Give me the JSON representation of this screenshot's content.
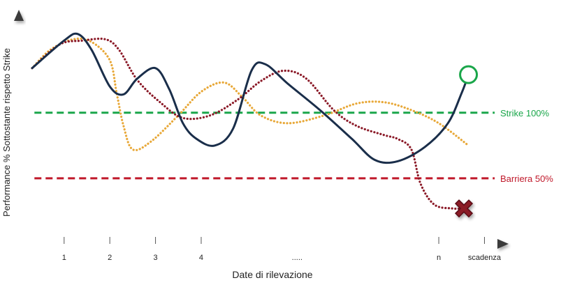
{
  "chart_data": {
    "type": "line",
    "title": "",
    "xlabel": "Date di rilevazione",
    "ylabel": "Performance % Sottostante rispetto Strike",
    "x_ticks": [
      "1",
      "2",
      "3",
      "4",
      ".....",
      "n",
      "scadenza"
    ],
    "ylim": [
      0,
      170
    ],
    "reference_lines": [
      {
        "label": "Strike 100%",
        "value": 100,
        "color": "#1aa64a",
        "style": "dashed"
      },
      {
        "label": "Barriera 50%",
        "value": 50,
        "color": "#c0182a",
        "style": "dashed"
      }
    ],
    "series": [
      {
        "color": "#1a2e4a",
        "style": "solid",
        "end_marker": "circle",
        "end_marker_color": "#1aa64a",
        "points": [
          [
            0.0,
            134
          ],
          [
            0.7,
            155
          ],
          [
            1.0,
            160
          ],
          [
            1.3,
            148
          ],
          [
            1.7,
            120
          ],
          [
            2.0,
            114
          ],
          [
            2.3,
            126
          ],
          [
            2.7,
            134
          ],
          [
            3.0,
            118
          ],
          [
            3.3,
            92
          ],
          [
            3.6,
            80
          ],
          [
            4.0,
            75
          ],
          [
            4.4,
            88
          ],
          [
            4.8,
            132
          ],
          [
            5.1,
            137
          ],
          [
            5.6,
            122
          ],
          [
            6.3,
            102
          ],
          [
            7.0,
            80
          ],
          [
            7.5,
            64
          ],
          [
            8.0,
            63
          ],
          [
            8.6,
            74
          ],
          [
            9.1,
            92
          ],
          [
            9.4,
            115
          ],
          [
            9.55,
            129
          ]
        ]
      },
      {
        "color": "#e8a838",
        "style": "dotted",
        "points": [
          [
            0.0,
            134
          ],
          [
            0.4,
            148
          ],
          [
            0.9,
            156
          ],
          [
            1.3,
            154
          ],
          [
            1.7,
            140
          ],
          [
            1.85,
            115
          ],
          [
            2.0,
            90
          ],
          [
            2.2,
            72
          ],
          [
            2.6,
            78
          ],
          [
            3.2,
            98
          ],
          [
            3.7,
            116
          ],
          [
            4.2,
            123
          ],
          [
            4.6,
            112
          ],
          [
            5.0,
            98
          ],
          [
            5.6,
            92
          ],
          [
            6.4,
            98
          ],
          [
            7.1,
            107
          ],
          [
            7.7,
            108
          ],
          [
            8.3,
            102
          ],
          [
            8.9,
            92
          ],
          [
            9.55,
            75
          ]
        ]
      },
      {
        "color": "#8b1a28",
        "style": "dotted",
        "points": [
          [
            0.0,
            134
          ],
          [
            0.6,
            152
          ],
          [
            1.1,
            155
          ],
          [
            1.6,
            156
          ],
          [
            1.9,
            148
          ],
          [
            2.3,
            125
          ],
          [
            2.8,
            108
          ],
          [
            3.3,
            96
          ],
          [
            3.9,
            98
          ],
          [
            4.5,
            110
          ],
          [
            5.0,
            124
          ],
          [
            5.5,
            132
          ],
          [
            6.0,
            126
          ],
          [
            6.6,
            102
          ],
          [
            7.1,
            90
          ],
          [
            7.7,
            83
          ],
          [
            8.0,
            80
          ],
          [
            8.3,
            72
          ],
          [
            8.5,
            46
          ],
          [
            8.8,
            30
          ],
          [
            9.2,
            27
          ],
          [
            9.45,
            27
          ]
        ],
        "end_marker": "x",
        "end_marker_color": "#8b1a28"
      }
    ]
  }
}
